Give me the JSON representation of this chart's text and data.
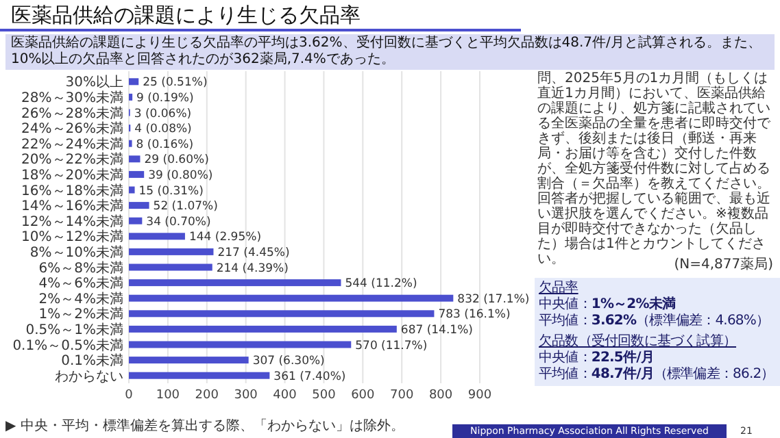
{
  "chart_data": {
    "type": "bar",
    "orientation": "horizontal",
    "title": "医薬品供給の課題により生じる欠品率",
    "subtitle": "医薬品供給の課題により生じる欠品率の平均は3.62%、受付回数に基づくと平均欠品数は48.7件/月と試算される。また、10%以上の欠品率と回答されたのが362薬局,7.4%であった。",
    "categories": [
      "30%以上",
      "28%～30%未満",
      "26%～28%未満",
      "24%～26%未満",
      "22%～24%未満",
      "20%～22%未満",
      "18%～20%未満",
      "16%～18%未満",
      "14%～16%未満",
      "12%～14%未満",
      "10%～12%未満",
      "8%～10%未満",
      "6%～8%未満",
      "4%～6%未満",
      "2%～4%未満",
      "1%～2%未満",
      "0.5%～1%未満",
      "0.1%～0.5%未満",
      "0.1%未満",
      "わからない"
    ],
    "values": [
      25,
      9,
      3,
      4,
      8,
      29,
      39,
      15,
      52,
      34,
      144,
      217,
      214,
      544,
      832,
      783,
      687,
      570,
      307,
      361
    ],
    "value_labels": [
      "25 (0.51%)",
      "9 (0.19%)",
      "3 (0.06%)",
      "4 (0.08%)",
      "8 (0.16%)",
      "29 (0.60%)",
      "39 (0.80%)",
      "15 (0.31%)",
      "52 (1.07%)",
      "34 (0.70%)",
      "144 (2.95%)",
      "217 (4.45%)",
      "214 (4.39%)",
      "544 (11.2%)",
      "832 (17.1%)",
      "783 (16.1%)",
      "687 (14.1%)",
      "570 (11.7%)",
      "307 (6.30%)",
      "361 (7.40%)"
    ],
    "color": "#4b4fcf",
    "xlim": [
      0,
      900
    ],
    "xticks": [
      0,
      100,
      200,
      300,
      400,
      500,
      600,
      700,
      800,
      900
    ],
    "grid": "x",
    "annotations": [
      "問、2025年5月の1カ月間（もしくは直近1カ月間）において、医薬品供給の課題により、処方箋に記載されている全医薬品の全量を患者に即時交付できず、後刻または後日（郵送・再来局・お届け等を含む）交付した件数が、全処方箋受付件数に対して占める割合（＝欠品率）を教えてください。回答者が把握している範囲で、最も近い選択肢を選んでください。※複数品目が即時交付できなかった（欠品した）場合は1件とカウントしてください。",
      "(N=4,877薬局)",
      "欠品率",
      "中央値：**1%～2%未満**",
      "平均値：**3.62%**（標準偏差：4.68%）",
      "欠品数（受付回数に基づく試算）",
      "中央値：**22.5件/月**",
      "平均値：**48.7件/月**（標準偏差：86.2）",
      "▶ 中央・平均・標準偏差を算出する際、「わからない」は除外。",
      "Nippon Pharmacy Association All Rights Reserved",
      "21"
    ]
  }
}
